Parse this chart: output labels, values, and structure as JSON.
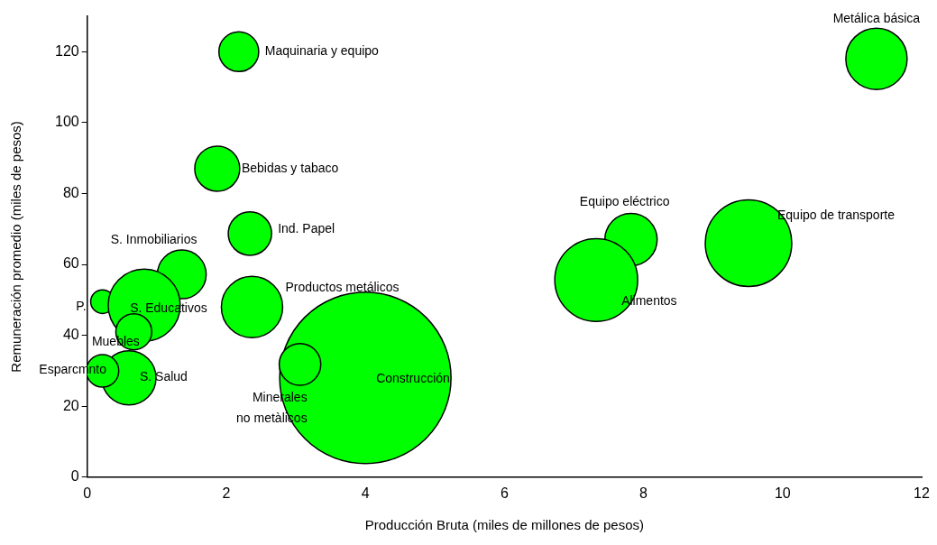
{
  "chart_data": {
    "type": "bubble",
    "xlabel": "Producción Bruta (miles de millones de pesos)",
    "ylabel": "Remuneración promedio (miles de pesos)",
    "x": [
      11.35,
      2.18,
      1.87,
      7.82,
      9.51,
      2.34,
      1.36,
      0.22,
      0.82,
      0.67,
      2.37,
      7.32,
      0.6,
      0.22,
      4.0,
      3.06
    ],
    "values": [
      118,
      120,
      87,
      67,
      66,
      68.7,
      57.2,
      49.5,
      48.5,
      41,
      48,
      55.6,
      28,
      30,
      28,
      31.8
    ],
    "sizes": [
      0.128,
      0.054,
      0.069,
      0.093,
      0.255,
      0.064,
      0.081,
      0.019,
      0.177,
      0.044,
      0.128,
      0.234,
      0.1,
      0.036,
      1,
      0.059
    ],
    "color": "#00ff00",
    "xlim": [
      0,
      12
    ],
    "xticks": [
      0,
      2,
      4,
      6,
      8,
      10,
      12
    ],
    "ylim": [
      0,
      130
    ],
    "yticks": [
      0,
      20,
      40,
      60,
      80,
      100,
      120
    ],
    "grid": false,
    "legend": false,
    "annotations": [
      {
        "text": "Metálica básica",
        "x": 11.35,
        "y": 118
      },
      {
        "text": "Maquinaria y equipo",
        "x": 2.18,
        "y": 120
      },
      {
        "text": "Bebidas y tabaco",
        "x": 1.87,
        "y": 87
      },
      {
        "text": "Equipo eléctrico",
        "x": 7.82,
        "y": 67
      },
      {
        "text": "Equipo de transporte",
        "x": 9.51,
        "y": 66
      },
      {
        "text": "Ind. Papel",
        "x": 2.34,
        "y": 68.7
      },
      {
        "text": "S. Inmobiliarios",
        "x": 1.36,
        "y": 57.2
      },
      {
        "text": "P.",
        "x": 0.22,
        "y": 49.5
      },
      {
        "text": "S. Educativos",
        "x": 0.82,
        "y": 48.5
      },
      {
        "text": "Productos metálicos",
        "x": 2.37,
        "y": 48
      },
      {
        "text": "Alimentos",
        "x": 7.32,
        "y": 55.6
      },
      {
        "text": "Muebles",
        "x": 0.67,
        "y": 41
      },
      {
        "text": "Esparcmnto",
        "x": 0.22,
        "y": 30
      },
      {
        "text": "S. Salud",
        "x": 0.6,
        "y": 28
      },
      {
        "text": "Construcción",
        "x": 4.0,
        "y": 28
      },
      {
        "text": "Minerales\nno metàlicos",
        "x": 3.06,
        "y": 31.8
      }
    ]
  }
}
